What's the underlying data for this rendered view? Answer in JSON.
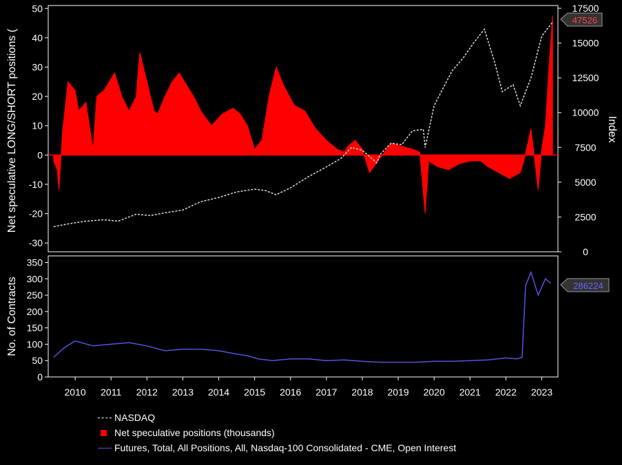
{
  "colors": {
    "background": "#000000",
    "nasdaq": "#dddddd",
    "net_positions": "#ff0000",
    "open_interest": "#5555dd"
  },
  "chart_data": [
    {
      "type": "area",
      "title": "",
      "ylabel": "Net speculative LONG/SHORT positions (",
      "y2label": "Index",
      "ylim": [
        -33,
        51
      ],
      "y_ticks": [
        "50",
        "40",
        "30",
        "20",
        "10",
        "0",
        "-10",
        "-20",
        "-30"
      ],
      "y2lim": [
        0,
        17700
      ],
      "y2_ticks": [
        "17500",
        "15000",
        "12500",
        "10000",
        "7500",
        "5000",
        "2500",
        "0"
      ],
      "x_ticks": [
        "2010",
        "2011",
        "2012",
        "2013",
        "2014",
        "2015",
        "2016",
        "2017",
        "2018",
        "2019",
        "2020",
        "2021",
        "2022",
        "2023"
      ],
      "last_value_labels": {
        "net_positions": "47526"
      },
      "series": [
        {
          "name": "NASDAQ",
          "style": "dashed",
          "x": [
            2009.9,
            2010.3,
            2010.8,
            2011.3,
            2011.7,
            2012.2,
            2012.6,
            2013.0,
            2013.5,
            2014.0,
            2014.5,
            2015.0,
            2015.5,
            2015.8,
            2016.1,
            2016.5,
            2017.0,
            2017.5,
            2017.9,
            2018.2,
            2018.5,
            2018.9,
            2019.0,
            2019.3,
            2019.6,
            2019.9,
            2020.2,
            2020.25,
            2020.5,
            2020.8,
            2021.0,
            2021.3,
            2021.6,
            2021.9,
            2022.2,
            2022.4,
            2022.7,
            2022.9,
            2023.2,
            2023.5,
            2023.8
          ],
          "y": [
            1800,
            2000,
            2200,
            2300,
            2200,
            2700,
            2600,
            2800,
            3000,
            3600,
            3900,
            4300,
            4500,
            4400,
            4100,
            4600,
            5400,
            6100,
            6700,
            7500,
            7300,
            6400,
            7000,
            7800,
            7700,
            8700,
            8800,
            7500,
            10500,
            12000,
            13000,
            13900,
            15000,
            16000,
            13500,
            11500,
            12000,
            10500,
            12500,
            15500,
            16500
          ]
        },
        {
          "name": "Net speculative positions (thousands)",
          "style": "area",
          "x": [
            2009.9,
            2010.0,
            2010.05,
            2010.15,
            2010.3,
            2010.5,
            2010.6,
            2010.8,
            2011.0,
            2011.1,
            2011.3,
            2011.6,
            2011.8,
            2012.0,
            2012.2,
            2012.3,
            2012.5,
            2012.7,
            2012.8,
            2013.0,
            2013.2,
            2013.4,
            2013.6,
            2013.8,
            2014.0,
            2014.3,
            2014.6,
            2014.9,
            2015.1,
            2015.3,
            2015.5,
            2015.7,
            2015.9,
            2016.1,
            2016.3,
            2016.6,
            2016.9,
            2017.2,
            2017.5,
            2017.8,
            2018.0,
            2018.1,
            2018.3,
            2018.5,
            2018.7,
            2019.0,
            2019.3,
            2019.6,
            2019.9,
            2020.1,
            2020.25,
            2020.35,
            2020.6,
            2020.9,
            2021.2,
            2021.5,
            2021.8,
            2022.0,
            2022.3,
            2022.6,
            2022.9,
            2023.0,
            2023.2,
            2023.4,
            2023.5,
            2023.6,
            2023.7,
            2023.8
          ],
          "y": [
            -2,
            -5,
            -12,
            8,
            25,
            22,
            15,
            18,
            2,
            20,
            22,
            28,
            20,
            15,
            20,
            35,
            25,
            15,
            14,
            20,
            25,
            28,
            24,
            20,
            15,
            10,
            14,
            16,
            14,
            10,
            2,
            5,
            20,
            30,
            24,
            17,
            15,
            9,
            5,
            2,
            1,
            3,
            5,
            2,
            -6,
            -1,
            4,
            3,
            2,
            1,
            -20,
            -2,
            -4,
            -5,
            -3,
            -2,
            -2,
            -4,
            -6,
            -8,
            -6,
            -2,
            9,
            -12,
            2,
            10,
            30,
            47.526
          ]
        }
      ]
    },
    {
      "type": "line",
      "ylabel": "No. of Contracts",
      "ylim": [
        0,
        370
      ],
      "y_ticks": [
        "350",
        "300",
        "250",
        "200",
        "150",
        "100",
        "50",
        "0"
      ],
      "x_ticks": [
        "2010",
        "2011",
        "2012",
        "2013",
        "2014",
        "2015",
        "2016",
        "2017",
        "2018",
        "2019",
        "2020",
        "2021",
        "2022",
        "2023"
      ],
      "last_value_labels": {
        "open_interest": "286224"
      },
      "series": [
        {
          "name": "Futures, Total, All Positions, All, Nasdaq-100 Consolidated - CME, Open Interest",
          "x": [
            2009.9,
            2010.2,
            2010.5,
            2011.0,
            2011.5,
            2012.0,
            2012.5,
            2013.0,
            2013.5,
            2014.0,
            2014.5,
            2015.0,
            2015.3,
            2015.6,
            2016.0,
            2016.5,
            2017.0,
            2017.5,
            2018.0,
            2018.5,
            2019.0,
            2019.5,
            2020.0,
            2020.5,
            2021.0,
            2021.5,
            2022.0,
            2022.5,
            2022.8,
            2022.95,
            2023.05,
            2023.2,
            2023.4,
            2023.6,
            2023.75
          ],
          "y": [
            60,
            90,
            110,
            95,
            100,
            105,
            95,
            80,
            85,
            85,
            80,
            70,
            65,
            55,
            50,
            55,
            55,
            50,
            52,
            48,
            45,
            45,
            45,
            48,
            48,
            50,
            52,
            58,
            55,
            60,
            280,
            320,
            250,
            300,
            286.224
          ]
        }
      ]
    }
  ]
}
